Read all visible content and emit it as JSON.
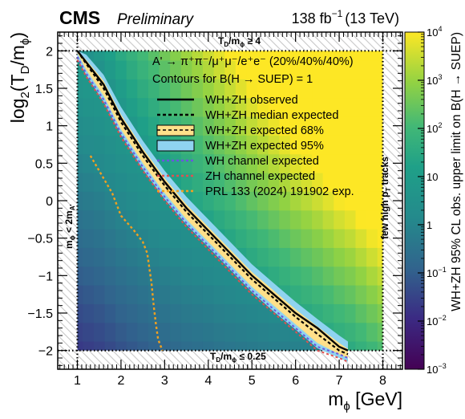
{
  "chart_data": {
    "type": "heatmap",
    "header": {
      "experiment": "CMS",
      "status": "Preliminary",
      "lumi_value": "138 fb",
      "lumi_exp": "−1",
      "energy": "(13 TeV)"
    },
    "x_axis": {
      "label_main": "m",
      "label_sub": "ϕ",
      "label_unit": " [GeV]",
      "range": [
        0.55,
        8.45
      ],
      "ticks": [
        1,
        2,
        3,
        4,
        5,
        6,
        7,
        8
      ],
      "tick_labels": [
        "1",
        "2",
        "3",
        "4",
        "5",
        "6",
        "7",
        "8"
      ]
    },
    "y_axis": {
      "label_pre": "log",
      "label_base": "2",
      "label_T": "(T",
      "label_D": "D",
      "label_m": "/m",
      "label_phi": "ϕ",
      "label_close": ")",
      "range": [
        -2.25,
        2.25
      ],
      "ticks": [
        -2,
        -1.5,
        -1,
        -0.5,
        0,
        0.5,
        1,
        1.5,
        2
      ],
      "tick_labels": [
        "−2",
        "−1.5",
        "−1",
        "−0.5",
        "0",
        "0.5",
        "1",
        "1.5",
        "2"
      ]
    },
    "z_axis": {
      "label": "WH+ZH 95% CL obs. upper limit on B(H → SUEP)",
      "scale": "log",
      "range": [
        0.001,
        10000
      ],
      "ticks": [
        0.001,
        0.01,
        0.1,
        1,
        10,
        100,
        1000,
        10000
      ],
      "tick_labels": [
        {
          "base": "10",
          "exp": "−3"
        },
        {
          "base": "10",
          "exp": "−2"
        },
        {
          "base": "10",
          "exp": "−1"
        },
        {
          "base": "1",
          "exp": ""
        },
        {
          "base": "10",
          "exp": ""
        },
        {
          "base": "10",
          "exp": "2"
        },
        {
          "base": "10",
          "exp": "3"
        },
        {
          "base": "10",
          "exp": "4"
        }
      ]
    },
    "annotations": {
      "model": "A' → π⁺π⁻/μ⁺μ⁻/e⁺e⁻ (20%/40%/40%)",
      "contours_note": "Contours for B(H → SUEP) = 1",
      "top_band": "T /m ≥ 4",
      "top_band_parts": [
        "T",
        "D",
        "/m",
        "ϕ",
        " ≥ 4"
      ],
      "bottom_band_parts": [
        "T",
        "D",
        "/m",
        "ϕ",
        " ≤ 0.25"
      ],
      "left_band_parts": [
        "m",
        "ϕ",
        " < 2m",
        "A'"
      ],
      "right_band_parts": [
        "few high p",
        "T",
        " tracks"
      ]
    },
    "legend": {
      "position": "top-right",
      "entries": [
        {
          "label": "WH+ZH observed",
          "style": "solid",
          "color": "#000000"
        },
        {
          "label": "WH+ZH median expected",
          "style": "dashed",
          "color": "#000000"
        },
        {
          "label": "WH+ZH expected 68%",
          "style": "box",
          "color": "#ffe08a"
        },
        {
          "label": "WH+ZH expected 95%",
          "style": "box",
          "color": "#8fd3f0"
        },
        {
          "label": "WH channel expected",
          "style": "dotted",
          "color": "#6a55e0"
        },
        {
          "label": "ZH channel expected",
          "style": "dotted",
          "color": "#e05050"
        },
        {
          "label": "PRL 133 (2024) 191902 exp.",
          "style": "dotted",
          "color": "#f0a020"
        }
      ]
    },
    "limit_contour": {
      "x": [
        1.0,
        1.2,
        1.6,
        2.0,
        2.5,
        3.0,
        3.5,
        4.0,
        4.5,
        5.0,
        5.5,
        6.0,
        6.5,
        7.0,
        7.2
      ],
      "observed": [
        2.0,
        1.85,
        1.55,
        1.1,
        0.65,
        0.25,
        -0.1,
        -0.4,
        -0.7,
        -1.0,
        -1.25,
        -1.5,
        -1.7,
        -1.95,
        -2.0
      ],
      "expected_median": [
        2.0,
        1.83,
        1.5,
        1.05,
        0.6,
        0.2,
        -0.15,
        -0.45,
        -0.75,
        -1.05,
        -1.3,
        -1.55,
        -1.78,
        -2.0,
        -2.05
      ],
      "band68_upper": [
        2.0,
        1.88,
        1.6,
        1.15,
        0.7,
        0.3,
        -0.05,
        -0.35,
        -0.65,
        -0.95,
        -1.2,
        -1.45,
        -1.68,
        -1.9,
        -1.98
      ],
      "band68_lower": [
        1.97,
        1.75,
        1.4,
        0.95,
        0.5,
        0.1,
        -0.25,
        -0.55,
        -0.85,
        -1.15,
        -1.4,
        -1.65,
        -1.9,
        -2.05,
        -2.1
      ],
      "band95_upper": [
        2.0,
        1.95,
        1.68,
        1.25,
        0.8,
        0.4,
        0.05,
        -0.25,
        -0.55,
        -0.85,
        -1.1,
        -1.35,
        -1.58,
        -1.8,
        -1.88
      ],
      "band95_lower": [
        1.9,
        1.68,
        1.32,
        0.88,
        0.42,
        0.02,
        -0.32,
        -0.62,
        -0.92,
        -1.22,
        -1.48,
        -1.72,
        -1.97,
        -2.1,
        -2.15
      ],
      "wh_expected": [
        1.92,
        1.7,
        1.35,
        0.9,
        0.45,
        0.05,
        -0.3,
        -0.6,
        -0.9,
        -1.2,
        -1.45,
        -1.7,
        -1.95,
        -2.05,
        -2.1
      ],
      "zh_expected": [
        1.88,
        1.66,
        1.3,
        0.85,
        0.4,
        0.0,
        -0.35,
        -0.65,
        -0.95,
        -1.25,
        -1.5,
        -1.75,
        -2.0,
        -2.1,
        -2.15
      ]
    },
    "prl_expected": {
      "x": [
        1.3,
        1.5,
        1.8,
        2.0,
        2.3,
        2.5,
        2.6,
        2.65,
        2.7,
        2.75,
        2.8,
        2.85,
        2.95
      ],
      "y": [
        0.6,
        0.4,
        0.1,
        -0.2,
        -0.4,
        -0.55,
        -0.7,
        -0.9,
        -1.1,
        -1.4,
        -1.65,
        -1.85,
        -2.0
      ]
    }
  }
}
